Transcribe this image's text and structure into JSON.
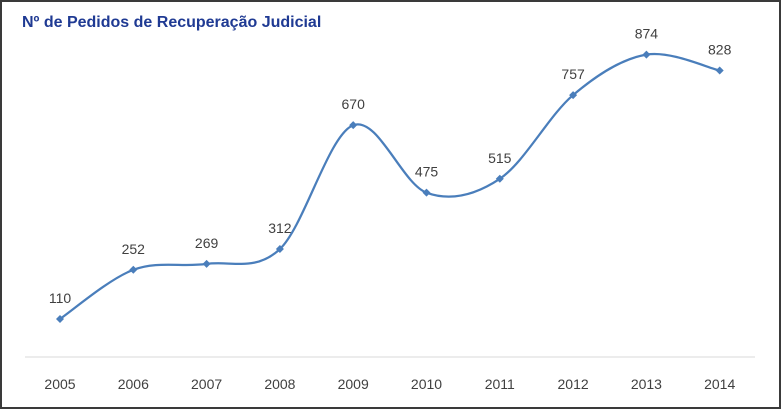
{
  "chart_data": {
    "type": "line",
    "title": "Nº de Pedidos de Recuperação Judicial",
    "xlabel": "",
    "ylabel": "",
    "categories": [
      "2005",
      "2006",
      "2007",
      "2008",
      "2009",
      "2010",
      "2011",
      "2012",
      "2013",
      "2014"
    ],
    "series": [
      {
        "values": [
          110,
          252,
          269,
          312,
          670,
          475,
          515,
          757,
          874,
          828
        ]
      }
    ],
    "ylim": [
      0,
      1000
    ],
    "grid": false,
    "legend": "none",
    "smooth": true,
    "line_color": "#4a7ebb",
    "marker_color": "#4a7ebb",
    "title_color": "#1f3a93"
  }
}
